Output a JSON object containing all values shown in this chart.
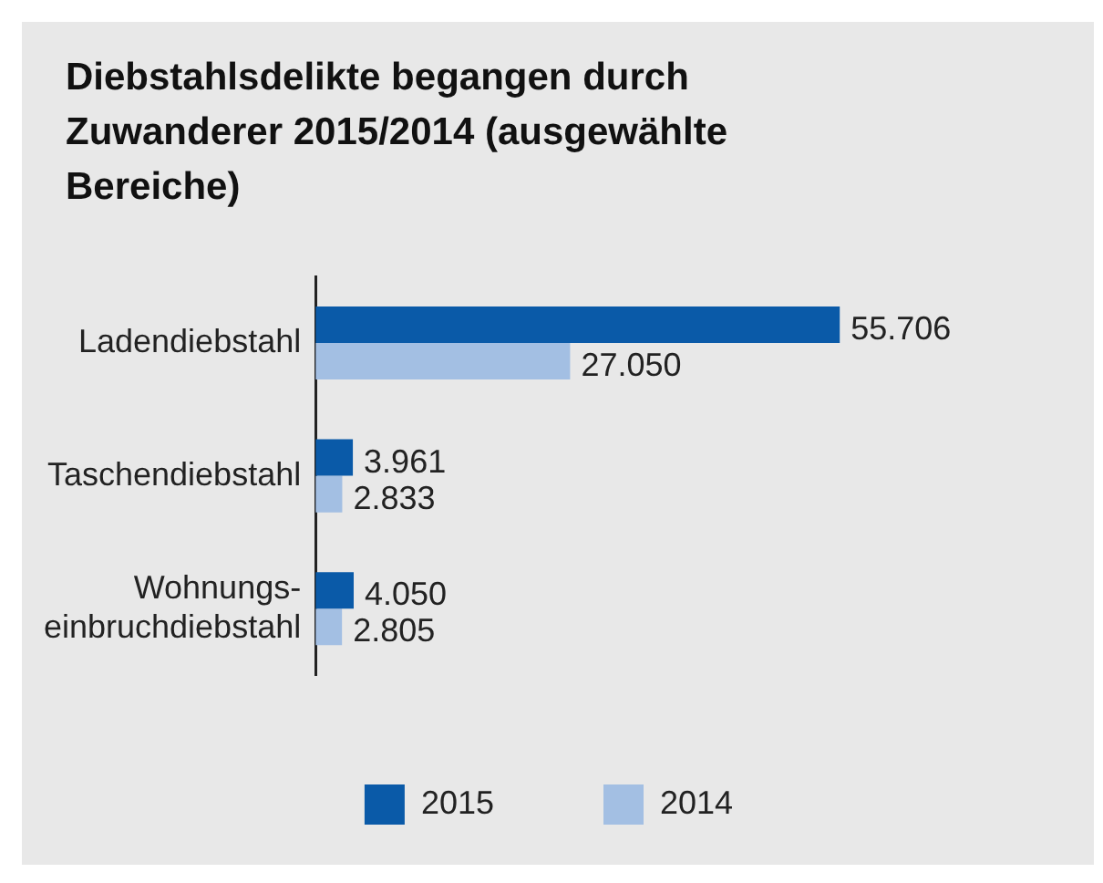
{
  "chart_data": {
    "type": "bar",
    "orientation": "horizontal",
    "title": "Diebstahlsdelikte begangen durch Zuwanderer 2015/2014 (ausgewählte Bereiche)",
    "categories": [
      "Ladendiebstahl",
      "Taschendiebstahl",
      "Wohnungs-einbruchdiebstahl"
    ],
    "series": [
      {
        "name": "2015",
        "color": "#0a5aa8",
        "values": [
          55706,
          3961,
          4050
        ],
        "value_labels": [
          "55.706",
          "3.961",
          "4.050"
        ]
      },
      {
        "name": "2014",
        "color": "#a3bfe3",
        "values": [
          27050,
          2833,
          2805
        ],
        "value_labels": [
          "27.050",
          "2.833",
          "2.805"
        ]
      }
    ],
    "legend": "bottom",
    "grid": false
  }
}
